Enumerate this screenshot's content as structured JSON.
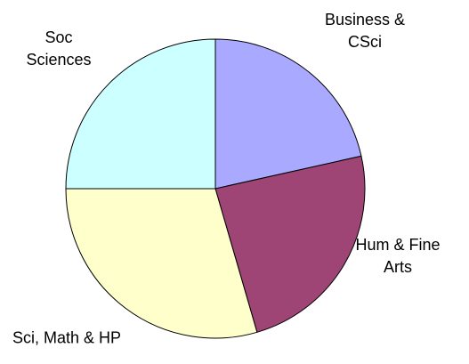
{
  "chart_data": {
    "type": "pie",
    "categories": [
      "Business & CSci",
      "Hum & Fine Arts",
      "Sci, Math & HP",
      "Soc Sciences"
    ],
    "values": [
      21.5,
      24,
      29.5,
      25
    ],
    "colors": [
      "#a9a9ff",
      "#9e4576",
      "#ffffcc",
      "#ccffff"
    ]
  }
}
